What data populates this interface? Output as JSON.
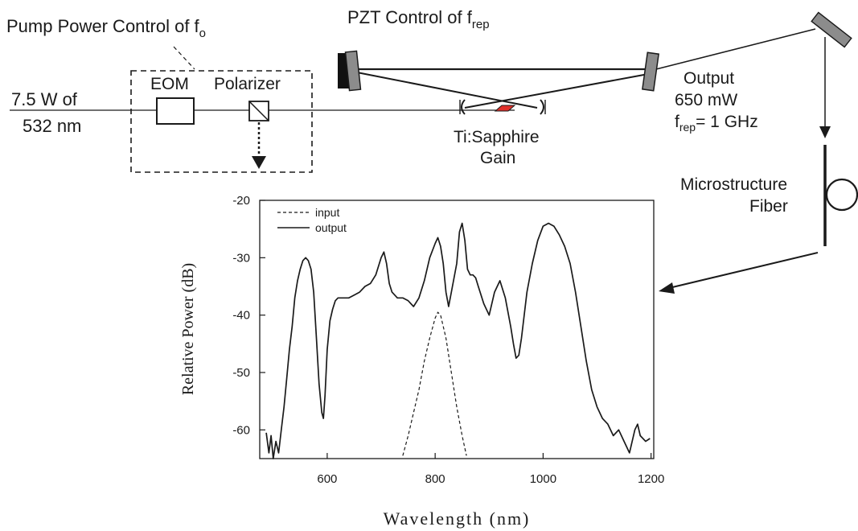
{
  "labels": {
    "pump_power_control": "Pump Power Control of f",
    "pump_power_sub": "o",
    "pzt_control": "PZT Control of f",
    "pzt_sub": "rep",
    "source_line1": "7.5 W of",
    "source_line2": "532 nm",
    "eom": "EOM",
    "polarizer": "Polarizer",
    "gain_line1": "Ti:Sapphire",
    "gain_line2": "Gain",
    "output_line1": "Output",
    "output_line2": "650 mW",
    "frep_symbol": "f",
    "frep_sub": "rep",
    "frep_value": "= 1 GHz",
    "fiber_line1": "Microstructure",
    "fiber_line2": "Fiber"
  },
  "colors": {
    "ink": "#1a1a1a",
    "mirror": "#8c8c8c",
    "gain_crystal": "#e0302a",
    "background": "#ffffff"
  },
  "chart_data": {
    "type": "line",
    "xlabel": "Wavelength (nm)",
    "ylabel": "Relative Power (dB)",
    "xlim": [
      475,
      1205
    ],
    "ylim": [
      -65,
      -20
    ],
    "xticks": [
      600,
      800,
      1000,
      1200
    ],
    "yticks": [
      -20,
      -30,
      -40,
      -50,
      -60
    ],
    "grid": false,
    "legend_position": "top-left",
    "series": [
      {
        "name": "input",
        "style": "dashed",
        "x": [
          740,
          750,
          760,
          770,
          780,
          790,
          800,
          805,
          810,
          820,
          830,
          840,
          850,
          858
        ],
        "y": [
          -64.5,
          -61,
          -57,
          -53,
          -48,
          -44,
          -40.5,
          -39.5,
          -40,
          -44,
          -50,
          -56,
          -61,
          -64.5
        ]
      },
      {
        "name": "output",
        "style": "solid",
        "x": [
          487,
          492,
          496,
          500,
          505,
          510,
          515,
          520,
          525,
          530,
          535,
          540,
          545,
          550,
          555,
          560,
          565,
          570,
          575,
          580,
          585,
          590,
          593,
          596,
          600,
          605,
          610,
          615,
          620,
          630,
          640,
          650,
          660,
          670,
          680,
          690,
          700,
          705,
          710,
          715,
          720,
          730,
          740,
          750,
          760,
          770,
          780,
          790,
          800,
          805,
          810,
          815,
          820,
          825,
          830,
          840,
          845,
          850,
          855,
          860,
          865,
          870,
          875,
          880,
          890,
          900,
          910,
          920,
          930,
          940,
          945,
          950,
          955,
          960,
          965,
          970,
          980,
          990,
          1000,
          1010,
          1020,
          1030,
          1040,
          1050,
          1060,
          1070,
          1080,
          1090,
          1100,
          1110,
          1120,
          1130,
          1140,
          1150,
          1160,
          1170,
          1175,
          1180,
          1190,
          1198
        ],
        "y": [
          -60.5,
          -64,
          -61,
          -65,
          -62,
          -64,
          -60,
          -56,
          -51,
          -46,
          -42,
          -37,
          -34,
          -32,
          -30.5,
          -30,
          -30.5,
          -32,
          -36,
          -44,
          -52,
          -57,
          -58,
          -54,
          -46,
          -41,
          -39,
          -37.5,
          -37,
          -37,
          -37,
          -36.5,
          -36,
          -35,
          -34.5,
          -33,
          -30,
          -29,
          -31,
          -34.5,
          -36,
          -37,
          -37,
          -37.5,
          -38.5,
          -37,
          -34,
          -30,
          -27.5,
          -26.5,
          -28,
          -31,
          -36,
          -38.5,
          -36,
          -31,
          -25.5,
          -24,
          -27,
          -32,
          -33,
          -33,
          -33.5,
          -35,
          -38,
          -40,
          -36,
          -34,
          -37,
          -42,
          -45,
          -47.5,
          -47,
          -44,
          -40,
          -36,
          -31,
          -27,
          -24.5,
          -24,
          -24.5,
          -26,
          -28,
          -31,
          -36,
          -42,
          -48,
          -53,
          -56,
          -58,
          -59,
          -61,
          -60,
          -62,
          -64,
          -60,
          -59,
          -61,
          -62,
          -61.5
        ]
      }
    ]
  }
}
